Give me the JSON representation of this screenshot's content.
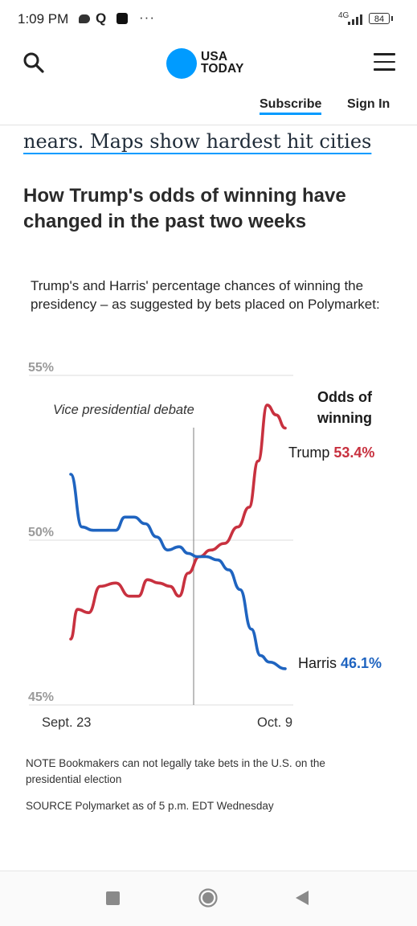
{
  "status_bar": {
    "time": "1:09 PM",
    "network": "4G",
    "battery": "84",
    "icons": [
      "message-icon",
      "search-app-icon",
      "app-square-icon",
      "more-dots-icon",
      "signal-icon",
      "battery-icon"
    ],
    "more": "···"
  },
  "header": {
    "logo_line1": "USA",
    "logo_line2": "TODAY",
    "logo_color": "#009bff",
    "subscribe": "Subscribe",
    "sign_in": "Sign In"
  },
  "article": {
    "prev_headline_fragment": "nears. Maps show hardest hit cities",
    "heading": "How Trump's odds of winning have changed in the past two weeks",
    "chart_subtitle": "Trump's and Harris' percentage chances of winning the presidency – as suggested by bets placed on Polymarket:",
    "note": "NOTE Bookmakers can not legally take bets in the U.S. on the presidential election",
    "source": "SOURCE Polymarket as of 5 p.m. EDT Wednesday"
  },
  "chart_data": {
    "type": "line",
    "title": "",
    "ylim": [
      45,
      55
    ],
    "yticks": [
      "55%",
      "50%",
      "45%"
    ],
    "ytick_values": [
      55,
      50,
      45
    ],
    "x_start_label": "Sept. 23",
    "x_end_label": "Oct. 9",
    "grid": true,
    "legend_title": "Odds of winning",
    "annotation": "Vice presidential debate",
    "annotation_x": 0.52,
    "series": [
      {
        "name": "Trump",
        "final_label": "53.4%",
        "color": "#c8313f",
        "points": [
          [
            0,
            47.0
          ],
          [
            0.03,
            47.9
          ],
          [
            0.08,
            47.8
          ],
          [
            0.13,
            48.6
          ],
          [
            0.2,
            48.7
          ],
          [
            0.26,
            48.3
          ],
          [
            0.3,
            48.3
          ],
          [
            0.34,
            48.8
          ],
          [
            0.39,
            48.7
          ],
          [
            0.44,
            48.6
          ],
          [
            0.48,
            48.3
          ],
          [
            0.52,
            49.0
          ],
          [
            0.57,
            49.5
          ],
          [
            0.62,
            49.7
          ],
          [
            0.68,
            49.9
          ],
          [
            0.74,
            50.4
          ],
          [
            0.79,
            51.0
          ],
          [
            0.83,
            52.4
          ],
          [
            0.87,
            54.1
          ],
          [
            0.91,
            53.8
          ],
          [
            0.95,
            53.4
          ]
        ]
      },
      {
        "name": "Harris",
        "final_label": "46.1%",
        "color": "#1f64c0",
        "points": [
          [
            0,
            52.0
          ],
          [
            0.05,
            50.4
          ],
          [
            0.1,
            50.3
          ],
          [
            0.16,
            50.3
          ],
          [
            0.2,
            50.3
          ],
          [
            0.24,
            50.7
          ],
          [
            0.28,
            50.7
          ],
          [
            0.33,
            50.5
          ],
          [
            0.38,
            50.1
          ],
          [
            0.43,
            49.7
          ],
          [
            0.48,
            49.8
          ],
          [
            0.52,
            49.6
          ],
          [
            0.56,
            49.5
          ],
          [
            0.6,
            49.5
          ],
          [
            0.65,
            49.4
          ],
          [
            0.7,
            49.1
          ],
          [
            0.75,
            48.5
          ],
          [
            0.8,
            47.3
          ],
          [
            0.84,
            46.5
          ],
          [
            0.88,
            46.3
          ],
          [
            0.95,
            46.1
          ]
        ]
      }
    ]
  }
}
